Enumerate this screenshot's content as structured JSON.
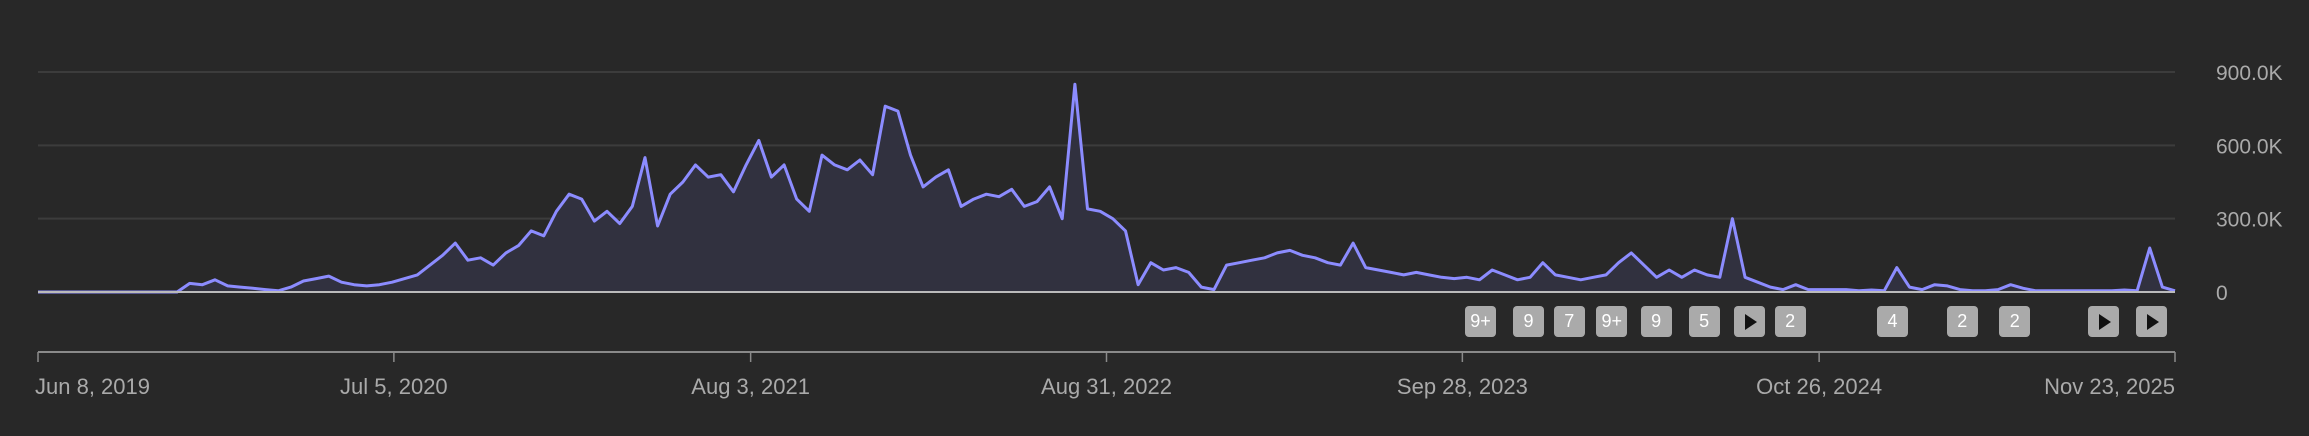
{
  "colors": {
    "line": "#8c8cff",
    "fill": "#31313f",
    "grid": "#3c3c3c",
    "axis": "#8a8a8a",
    "marker": "#aaaaaa"
  },
  "chart_data": {
    "type": "area",
    "title": "",
    "xlabel": "",
    "ylabel": "",
    "x_start": "2019-06-08",
    "x_end": "2025-11-23",
    "ylim": [
      0,
      900000
    ],
    "grid": true,
    "y_ticks": [
      {
        "value": 0,
        "label": "0"
      },
      {
        "value": 300000,
        "label": "300.0K"
      },
      {
        "value": 600000,
        "label": "600.0K"
      },
      {
        "value": 900000,
        "label": "900.0K"
      }
    ],
    "x_ticks": [
      {
        "date": "2019-06-08",
        "label": "Jun 8, 2019"
      },
      {
        "date": "2020-07-05",
        "label": "Jul 5, 2020"
      },
      {
        "date": "2021-08-03",
        "label": "Aug 3, 2021"
      },
      {
        "date": "2022-08-31",
        "label": "Aug 31, 2022"
      },
      {
        "date": "2023-09-28",
        "label": "Sep 28, 2023"
      },
      {
        "date": "2024-10-26",
        "label": "Oct 26, 2024"
      },
      {
        "date": "2025-11-23",
        "label": "Nov 23, 2025"
      }
    ],
    "values_k": [
      0,
      0,
      0,
      0,
      0,
      0,
      0,
      0,
      0,
      0,
      0,
      0,
      35,
      30,
      50,
      25,
      20,
      15,
      10,
      5,
      20,
      45,
      55,
      65,
      40,
      30,
      25,
      30,
      40,
      55,
      70,
      110,
      150,
      200,
      130,
      140,
      110,
      160,
      190,
      250,
      230,
      330,
      400,
      380,
      290,
      330,
      280,
      350,
      550,
      270,
      400,
      450,
      520,
      470,
      480,
      410,
      520,
      620,
      470,
      520,
      380,
      330,
      560,
      520,
      500,
      540,
      480,
      760,
      740,
      560,
      430,
      470,
      500,
      350,
      380,
      400,
      390,
      420,
      350,
      370,
      430,
      300,
      850,
      340,
      330,
      300,
      250,
      30,
      120,
      90,
      100,
      80,
      20,
      10,
      110,
      120,
      130,
      140,
      160,
      170,
      150,
      140,
      120,
      110,
      200,
      100,
      90,
      80,
      70,
      80,
      70,
      60,
      55,
      60,
      50,
      90,
      70,
      50,
      60,
      120,
      70,
      60,
      50,
      60,
      70,
      120,
      160,
      110,
      60,
      90,
      60,
      90,
      70,
      60,
      300,
      60,
      40,
      20,
      10,
      30,
      10,
      10,
      10,
      10,
      5,
      8,
      5,
      100,
      20,
      10,
      30,
      25,
      10,
      5,
      5,
      10,
      30,
      15,
      5,
      5,
      5,
      5,
      5,
      5,
      5,
      8,
      5,
      180,
      20,
      5
    ]
  },
  "markers": [
    {
      "label": "9+",
      "type": "count",
      "date": "2023-10-18"
    },
    {
      "label": "9",
      "type": "count",
      "date": "2023-12-10"
    },
    {
      "label": "7",
      "type": "count",
      "date": "2024-01-24"
    },
    {
      "label": "9+",
      "type": "count",
      "date": "2024-03-11"
    },
    {
      "label": "9",
      "type": "count",
      "date": "2024-04-29"
    },
    {
      "label": "5",
      "type": "count",
      "date": "2024-06-21"
    },
    {
      "label": "",
      "type": "play",
      "date": "2024-08-10"
    },
    {
      "label": "2",
      "type": "count",
      "date": "2024-09-24"
    },
    {
      "label": "4",
      "type": "count",
      "date": "2025-01-15"
    },
    {
      "label": "2",
      "type": "count",
      "date": "2025-04-02"
    },
    {
      "label": "2",
      "type": "count",
      "date": "2025-05-30"
    },
    {
      "label": "",
      "type": "play",
      "date": "2025-09-05"
    },
    {
      "label": "",
      "type": "play",
      "date": "2025-10-28"
    }
  ]
}
